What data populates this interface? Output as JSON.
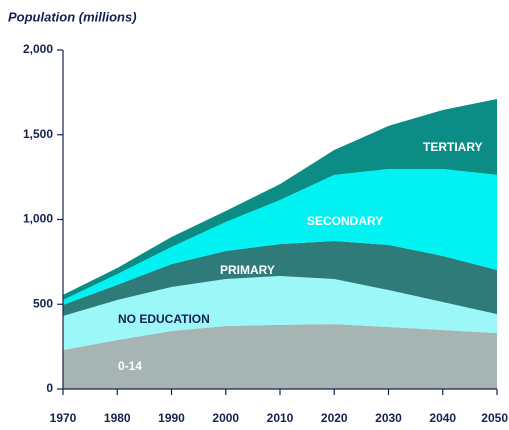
{
  "chart_data": {
    "type": "stacked_area",
    "title": "Population (millions)",
    "x": [
      1970,
      1980,
      1990,
      2000,
      2010,
      2020,
      2030,
      2040,
      2050
    ],
    "xlim": [
      1970,
      2050
    ],
    "xticks": [
      1970,
      1980,
      1990,
      2000,
      2010,
      2020,
      2030,
      2040,
      2050
    ],
    "ylim": [
      0,
      2000
    ],
    "yticks": [
      0,
      500,
      {
        "value": 1000,
        "label": "1,000"
      },
      {
        "value": 1500,
        "label": "1,500"
      },
      {
        "value": 2000,
        "label": "2,000"
      }
    ],
    "series": [
      {
        "name": "0-14",
        "color": "#a6b5b3",
        "values": [
          230,
          289,
          342,
          372,
          378,
          383,
          366,
          348,
          330
        ]
      },
      {
        "name": "NO EDUCATION",
        "color": "#9cf7f9",
        "values": [
          201,
          236,
          260,
          277,
          289,
          266,
          218,
          165,
          112
        ]
      },
      {
        "name": "PRIMARY",
        "color": "#2e7b7a",
        "values": [
          65,
          89,
          135,
          165,
          188,
          224,
          266,
          272,
          260
        ]
      },
      {
        "name": "SECONDARY",
        "color": "#00f2f2",
        "values": [
          29,
          64,
          101,
          171,
          260,
          390,
          448,
          513,
          561
        ]
      },
      {
        "name": "TERTIARY",
        "color": "#0b8c84",
        "values": [
          30,
          36,
          59,
          65,
          94,
          147,
          254,
          348,
          448
        ]
      }
    ]
  }
}
